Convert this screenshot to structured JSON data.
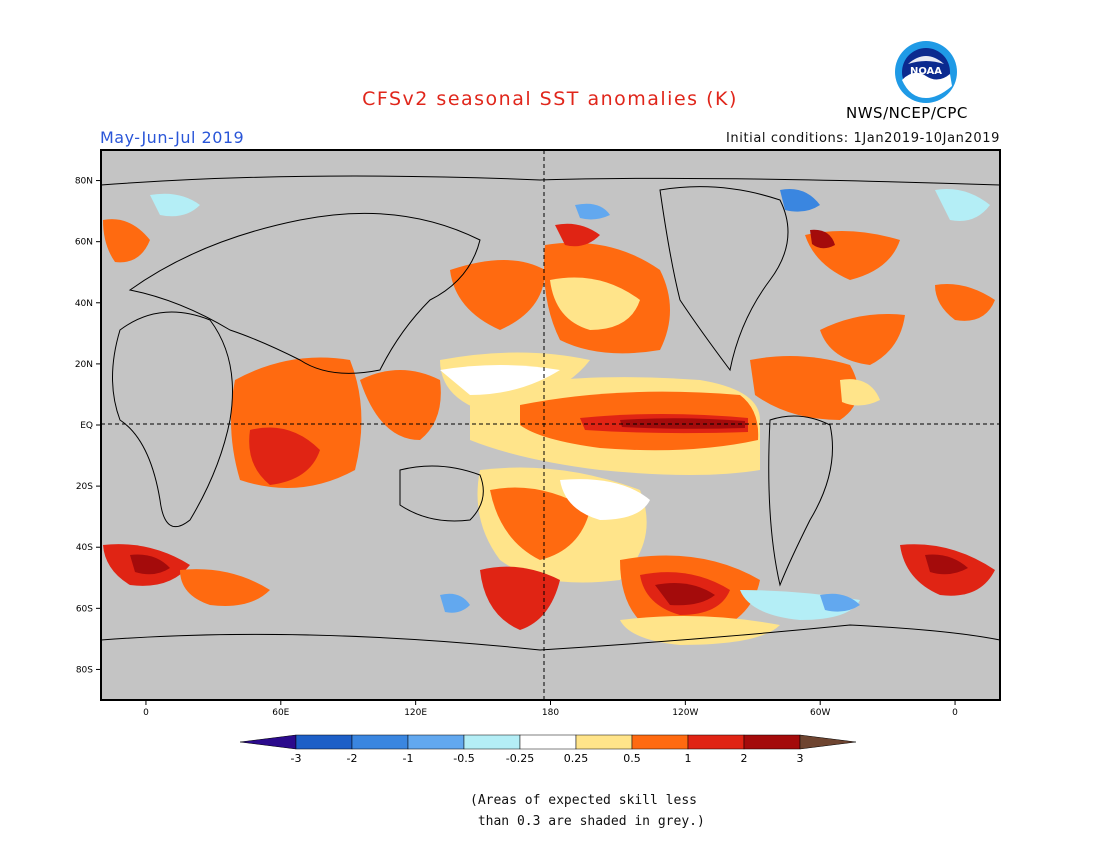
{
  "header": {
    "title": "CFSv2 seasonal SST anomalies (K)",
    "period": "May-Jun-Jul 2019",
    "initial_conditions": "Initial conditions: 1Jan2019-10Jan2019",
    "agency": "NWS/NCEP/CPC",
    "logo_text": "NOAA"
  },
  "map": {
    "projection": "equirectangular",
    "lon_range": [
      -20,
      380
    ],
    "lat_range": [
      -90,
      90
    ],
    "land_color": "#c4c4c4",
    "lat_labels": [
      "80N",
      "60N",
      "40N",
      "20N",
      "EQ",
      "20S",
      "40S",
      "60S",
      "80S"
    ],
    "lon_labels": [
      "0",
      "60E",
      "120E",
      "180",
      "120W",
      "60W",
      "0"
    ]
  },
  "colorbar": {
    "tick_labels": [
      "-3",
      "-2",
      "-1",
      "-0.5",
      "-0.25",
      "0.25",
      "0.5",
      "1",
      "2",
      "3"
    ],
    "colors": [
      "#2b0a8c",
      "#1d5fc7",
      "#3a86e0",
      "#62a8ef",
      "#b4eef6",
      "#ffffff",
      "#ffe48a",
      "#ff6a10",
      "#e02414",
      "#a40b0b",
      "#6e4430"
    ]
  },
  "footnote": "(Areas of expected skill less\n than 0.3 are shaded in grey.)"
}
